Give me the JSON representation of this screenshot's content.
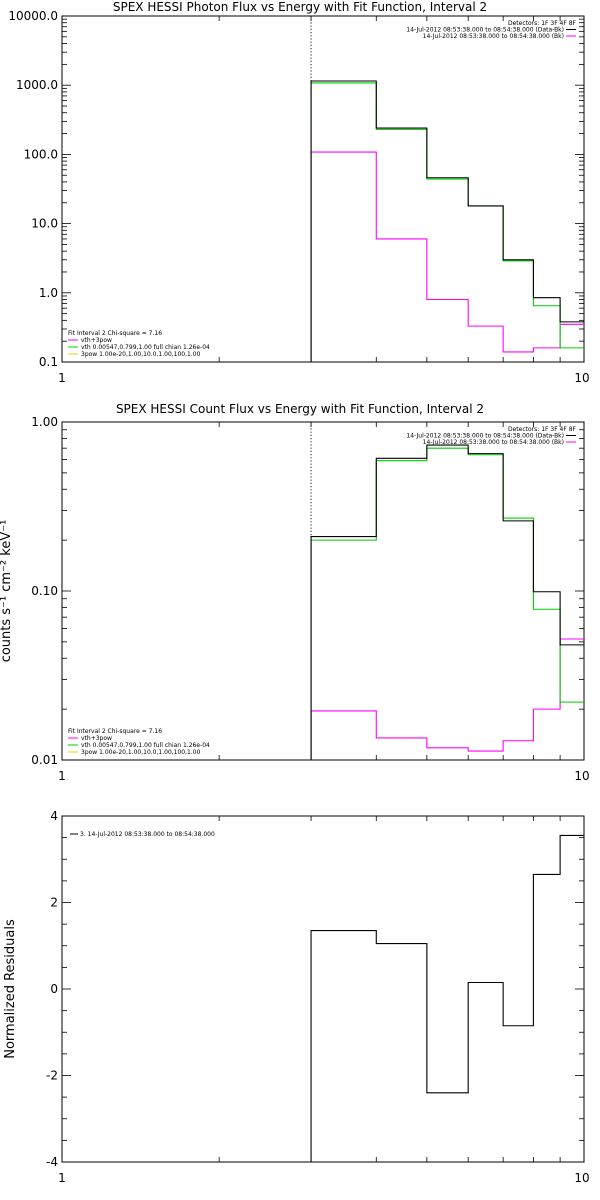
{
  "chart_data": [
    {
      "type": "line",
      "title": "SPEX HESSI Photon Flux vs Energy with Fit Function, Interval 2",
      "xlabel": "",
      "ylabel": "",
      "x_scale": "log",
      "y_scale": "log",
      "xlim": [
        1,
        10
      ],
      "ylim": [
        0.1,
        10000
      ],
      "x_ticks": [
        "1",
        "10"
      ],
      "y_ticks": [
        "0.1",
        "1.0",
        "10.0",
        "100.0",
        "1000.0",
        "10000.0"
      ],
      "vline_x": 3.0,
      "bin_edges": [
        3.0,
        4.0,
        5.0,
        6.0,
        7.0,
        8.0,
        9.0,
        10.0
      ],
      "series": [
        {
          "name": "",
          "color": "#000000",
          "values": [
            1150,
            240,
            46,
            18,
            3.0,
            0.85,
            0.38
          ]
        },
        {
          "name": "vth+3pow",
          "color": "#ff00ff",
          "values": [
            108,
            6.0,
            0.8,
            0.33,
            0.14,
            0.16,
            0.35
          ]
        },
        {
          "name": "vth 0.00547,0.799,1.00  full chian 1.26e-04",
          "color": "#00cc00",
          "values": [
            1080,
            230,
            44,
            18,
            2.9,
            0.65,
            0.16
          ]
        },
        {
          "name": "3pow 1.00e-20,1.00,10.0,1.00,100,1.00",
          "color": "#e6d600",
          "values": []
        }
      ],
      "legend_top_right": [
        "Detectors: 1F 3F 4F 8F",
        "14-Jul-2012 08:53:38.000 to 08:54:38.000 (Data-Bk)",
        "14-Jul-2012 08:53:38.000 to 08:54:38.000 (Bk)"
      ],
      "legend_top_right_colors": [
        "",
        "#000000",
        "#ff00ff"
      ],
      "legend_bottom_left_header": "Fit Interval 2   Chi-square = 7.16"
    },
    {
      "type": "line",
      "title": "SPEX HESSI Count Flux vs Energy with Fit Function, Interval 2",
      "xlabel": "",
      "ylabel": "counts s⁻¹ cm⁻² keV⁻¹",
      "x_scale": "log",
      "y_scale": "log",
      "xlim": [
        1,
        10
      ],
      "ylim": [
        0.01,
        1.0
      ],
      "x_ticks": [
        "1",
        "10"
      ],
      "y_ticks": [
        "0.01",
        "0.10",
        "1.00"
      ],
      "vline_x": 3.0,
      "bin_edges": [
        3.0,
        4.0,
        5.0,
        6.0,
        7.0,
        8.0,
        9.0,
        10.0
      ],
      "series": [
        {
          "name": "",
          "color": "#000000",
          "values": [
            0.21,
            0.61,
            0.73,
            0.65,
            0.26,
            0.099,
            0.048
          ]
        },
        {
          "name": "vth+3pow",
          "color": "#ff00ff",
          "values": [
            0.0195,
            0.0135,
            0.0118,
            0.0113,
            0.013,
            0.02,
            0.052
          ]
        },
        {
          "name": "vth 0.00547,0.799,1.00  full chian 1.26e-04",
          "color": "#00cc00",
          "values": [
            0.2,
            0.59,
            0.7,
            0.64,
            0.27,
            0.078,
            0.022
          ]
        },
        {
          "name": "3pow 1.00e-20,1.00,10.0,1.00,100,1.00",
          "color": "#e6d600",
          "values": []
        }
      ],
      "legend_top_right": [
        "Detectors: 1F 3F 4F 8F",
        "14-Jul-2012 08:53:38.000 to 08:54:38.000 (Data-Bk)",
        "14-Jul-2012 08:53:38.000 to 08:54:38.000 (Bk)"
      ],
      "legend_top_right_colors": [
        "",
        "#000000",
        "#ff00ff"
      ],
      "legend_bottom_left_header": "Fit Interval 2   Chi-square = 7.16"
    },
    {
      "type": "line",
      "title": "",
      "xlabel": "",
      "ylabel": "Normalized Residuals",
      "x_scale": "log",
      "y_scale": "linear",
      "xlim": [
        1,
        10
      ],
      "ylim": [
        -4,
        4
      ],
      "x_ticks": [
        "1",
        "10"
      ],
      "y_ticks": [
        "-4",
        "-2",
        "0",
        "2",
        "4"
      ],
      "bin_edges": [
        3.0,
        4.0,
        5.0,
        6.0,
        7.0,
        8.0,
        9.0,
        10.0
      ],
      "series": [
        {
          "name": "3. 14-Jul-2012 08:53:38.000 to 08:54:38.000",
          "color": "#000000",
          "values": [
            1.35,
            1.05,
            -2.4,
            0.15,
            -0.85,
            2.65,
            3.55
          ]
        }
      ]
    }
  ]
}
